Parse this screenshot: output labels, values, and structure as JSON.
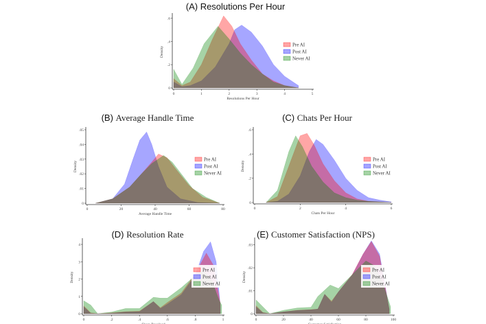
{
  "legend_colors": {
    "Pre AI": "#ff0000",
    "Post AI": "#0000ff",
    "Never AI": "#008000"
  },
  "chart_data": [
    {
      "type": "area",
      "letter": "(A)",
      "title": "Resolutions Per Hour",
      "title_style": "sans",
      "xlabel": "Resolutions Per Hour",
      "ylabel": "Density",
      "xlim": [
        0,
        5
      ],
      "ylim": [
        0,
        0.62
      ],
      "x_ticks": [
        {
          "v": 0,
          "label": "0"
        },
        {
          "v": 1,
          "label": "1"
        },
        {
          "v": 2,
          "label": "2"
        },
        {
          "v": 3,
          "label": "3"
        },
        {
          "v": 4,
          "label": "4"
        },
        {
          "v": 5,
          "label": "5"
        }
      ],
      "y_ticks": [
        {
          "v": 0,
          "label": "0"
        },
        {
          "v": 0.2,
          "label": ".2"
        },
        {
          "v": 0.4,
          "label": ".4"
        },
        {
          "v": 0.6,
          "label": ".6"
        }
      ],
      "legend": "right",
      "grid": false,
      "series": [
        {
          "name": "Pre AI",
          "x": [
            0,
            0.3,
            0.6,
            1,
            1.4,
            1.8,
            2.1,
            2.4,
            2.8,
            3.2,
            3.6,
            4,
            4.5
          ],
          "y": [
            0.08,
            0.02,
            0.05,
            0.2,
            0.42,
            0.62,
            0.53,
            0.38,
            0.24,
            0.12,
            0.06,
            0.02,
            0
          ]
        },
        {
          "name": "Post AI",
          "x": [
            0,
            0.3,
            0.6,
            1,
            1.5,
            2,
            2.2,
            2.45,
            2.8,
            3.2,
            3.6,
            4,
            4.5
          ],
          "y": [
            0.05,
            0.01,
            0.02,
            0.06,
            0.18,
            0.38,
            0.5,
            0.54,
            0.48,
            0.36,
            0.2,
            0.1,
            0.02
          ]
        },
        {
          "name": "Never AI",
          "x": [
            0,
            0.3,
            0.7,
            1.1,
            1.6,
            2,
            2.4,
            2.8,
            3.2,
            3.6,
            4,
            4.5
          ],
          "y": [
            0.16,
            0.03,
            0.17,
            0.38,
            0.53,
            0.42,
            0.3,
            0.2,
            0.12,
            0.05,
            0.02,
            0
          ]
        }
      ]
    },
    {
      "type": "area",
      "letter": "(B)",
      "title": "Average Handle Time",
      "title_style": "serif",
      "xlabel": "Average Handle Time",
      "ylabel": "Density",
      "xlim": [
        0,
        80
      ],
      "ylim": [
        0,
        0.05
      ],
      "x_ticks": [
        {
          "v": 0,
          "label": "0"
        },
        {
          "v": 20,
          "label": "20"
        },
        {
          "v": 40,
          "label": "40"
        },
        {
          "v": 60,
          "label": "60"
        },
        {
          "v": 80,
          "label": "80"
        }
      ],
      "y_ticks": [
        {
          "v": 0,
          "label": "0"
        },
        {
          "v": 0.01,
          "label": ".01"
        },
        {
          "v": 0.02,
          "label": ".02"
        },
        {
          "v": 0.03,
          "label": ".03"
        },
        {
          "v": 0.04,
          "label": ".04"
        },
        {
          "v": 0.05,
          "label": ".05"
        }
      ],
      "legend": "right",
      "grid": false,
      "series": [
        {
          "name": "Pre AI",
          "x": [
            5,
            15,
            25,
            32,
            38,
            42,
            47,
            53,
            60,
            68,
            78
          ],
          "y": [
            0,
            0.003,
            0.011,
            0.02,
            0.028,
            0.0335,
            0.031,
            0.022,
            0.012,
            0.004,
            0
          ]
        },
        {
          "name": "Post AI",
          "x": [
            5,
            15,
            22,
            27,
            31,
            35,
            38,
            42,
            47,
            55,
            65,
            78
          ],
          "y": [
            0,
            0.003,
            0.013,
            0.03,
            0.043,
            0.0485,
            0.04,
            0.025,
            0.011,
            0.003,
            0.0005,
            0
          ]
        },
        {
          "name": "Never AI",
          "x": [
            5,
            15,
            25,
            32,
            38,
            45,
            50,
            56,
            62,
            70,
            78
          ],
          "y": [
            0,
            0.003,
            0.011,
            0.02,
            0.027,
            0.0325,
            0.028,
            0.019,
            0.01,
            0.004,
            0
          ]
        }
      ]
    },
    {
      "type": "area",
      "letter": "(C)",
      "title": "Chats Per Hour",
      "title_style": "serif",
      "xlabel": "Chats Per Hour",
      "ylabel": "Density",
      "xlim": [
        0,
        6
      ],
      "ylim": [
        0,
        0.6
      ],
      "x_ticks": [
        {
          "v": 0,
          "label": "0"
        },
        {
          "v": 2,
          "label": "2"
        },
        {
          "v": 4,
          "label": "4"
        },
        {
          "v": 6,
          "label": "6"
        }
      ],
      "y_ticks": [
        {
          "v": 0,
          "label": "0"
        },
        {
          "v": 0.2,
          "label": ".2"
        },
        {
          "v": 0.4,
          "label": ".4"
        },
        {
          "v": 0.6,
          "label": ".6"
        }
      ],
      "legend": "right",
      "grid": false,
      "series": [
        {
          "name": "Pre AI",
          "x": [
            0.5,
            1,
            1.5,
            2,
            2.3,
            2.6,
            3,
            3.5,
            4,
            4.5,
            5,
            6
          ],
          "y": [
            0,
            0.05,
            0.3,
            0.55,
            0.57,
            0.48,
            0.32,
            0.18,
            0.08,
            0.03,
            0.01,
            0
          ]
        },
        {
          "name": "Post AI",
          "x": [
            0.5,
            1,
            1.5,
            2,
            2.4,
            2.7,
            3,
            3.5,
            4,
            4.5,
            5,
            5.5,
            6
          ],
          "y": [
            0,
            0.01,
            0.07,
            0.22,
            0.42,
            0.52,
            0.48,
            0.35,
            0.2,
            0.1,
            0.04,
            0.02,
            0.005
          ]
        },
        {
          "name": "Never AI",
          "x": [
            0.5,
            1,
            1.5,
            1.8,
            2.1,
            2.5,
            3,
            3.5,
            4,
            4.5,
            5,
            6
          ],
          "y": [
            0,
            0.1,
            0.42,
            0.55,
            0.46,
            0.3,
            0.17,
            0.08,
            0.04,
            0.02,
            0.01,
            0
          ]
        }
      ]
    },
    {
      "type": "area",
      "letter": "(D)",
      "title": "Resolution Rate",
      "title_style": "serif",
      "xlabel": "Share Resolved",
      "ylabel": "Density",
      "xlim": [
        0,
        1
      ],
      "ylim": [
        0,
        4.2
      ],
      "x_ticks": [
        {
          "v": 0,
          "label": "0"
        },
        {
          "v": 0.2,
          "label": ".2"
        },
        {
          "v": 0.4,
          "label": ".4"
        },
        {
          "v": 0.6,
          "label": ".6"
        },
        {
          "v": 0.8,
          "label": ".8"
        },
        {
          "v": 1,
          "label": "1"
        }
      ],
      "y_ticks": [
        {
          "v": 0,
          "label": "0"
        },
        {
          "v": 1,
          "label": "1"
        },
        {
          "v": 2,
          "label": "2"
        },
        {
          "v": 3,
          "label": "3"
        },
        {
          "v": 4,
          "label": "4"
        }
      ],
      "legend": "right",
      "grid": false,
      "series": [
        {
          "name": "Pre AI",
          "x": [
            0,
            0.05,
            0.1,
            0.2,
            0.3,
            0.4,
            0.5,
            0.55,
            0.6,
            0.7,
            0.8,
            0.88,
            0.93,
            0.98
          ],
          "y": [
            0.45,
            0.05,
            0,
            0.05,
            0.12,
            0.15,
            0.7,
            0.35,
            0.65,
            1.2,
            2.3,
            3.5,
            2.8,
            0.6
          ]
        },
        {
          "name": "Post AI",
          "x": [
            0,
            0.05,
            0.1,
            0.2,
            0.3,
            0.4,
            0.5,
            0.55,
            0.6,
            0.7,
            0.8,
            0.86,
            0.91,
            0.95,
            0.98
          ],
          "y": [
            0.4,
            0.02,
            0,
            0.03,
            0.1,
            0.12,
            0.7,
            0.3,
            0.55,
            1.1,
            2.2,
            3.6,
            4.15,
            3.0,
            0.5
          ]
        },
        {
          "name": "Never AI",
          "x": [
            0,
            0.05,
            0.1,
            0.2,
            0.3,
            0.4,
            0.5,
            0.55,
            0.6,
            0.7,
            0.8,
            0.86,
            0.92,
            0.97,
            0.99
          ],
          "y": [
            0.75,
            0.5,
            0,
            0.1,
            0.3,
            0.3,
            0.95,
            0.9,
            0.9,
            1.5,
            2.2,
            2.5,
            1.9,
            0.8,
            0.5
          ]
        }
      ]
    },
    {
      "type": "area",
      "letter": "(E)",
      "title": "Customer Satisfaction (NPS)",
      "title_style": "serif",
      "xlabel": "Customer Satisfaction",
      "ylabel": "Density",
      "xlim": [
        0,
        100
      ],
      "ylim": [
        0,
        0.032
      ],
      "x_ticks": [
        {
          "v": 0,
          "label": "0"
        },
        {
          "v": 20,
          "label": "20"
        },
        {
          "v": 40,
          "label": "40"
        },
        {
          "v": 60,
          "label": "60"
        },
        {
          "v": 80,
          "label": "80"
        },
        {
          "v": 100,
          "label": "100"
        }
      ],
      "y_ticks": [
        {
          "v": 0,
          "label": "0"
        },
        {
          "v": 0.01,
          "label": ".01"
        },
        {
          "v": 0.02,
          "label": ".02"
        },
        {
          "v": 0.03,
          "label": ".03"
        }
      ],
      "legend": "right",
      "grid": false,
      "series": [
        {
          "name": "Pre AI",
          "x": [
            0,
            5,
            10,
            20,
            30,
            40,
            45,
            50,
            55,
            60,
            70,
            78,
            84,
            90,
            97
          ],
          "y": [
            0.0035,
            0.0005,
            0,
            0.0008,
            0.0015,
            0.0018,
            0.002,
            0.0085,
            0.0055,
            0.0095,
            0.017,
            0.026,
            0.0315,
            0.025,
            0.002
          ]
        },
        {
          "name": "Post AI",
          "x": [
            0,
            5,
            10,
            20,
            30,
            40,
            45,
            50,
            55,
            60,
            70,
            78,
            84,
            90,
            97
          ],
          "y": [
            0.003,
            0.0004,
            0,
            0.0008,
            0.0014,
            0.0017,
            0.002,
            0.0085,
            0.005,
            0.0095,
            0.0168,
            0.026,
            0.0318,
            0.026,
            0.002
          ]
        },
        {
          "name": "Never AI",
          "x": [
            0,
            5,
            10,
            20,
            30,
            40,
            45,
            54,
            60,
            70,
            80,
            86,
            92,
            98
          ],
          "y": [
            0.006,
            0.003,
            0,
            0.0015,
            0.0025,
            0.0028,
            0.0075,
            0.0125,
            0.011,
            0.017,
            0.023,
            0.021,
            0.014,
            0.003
          ]
        }
      ]
    }
  ]
}
